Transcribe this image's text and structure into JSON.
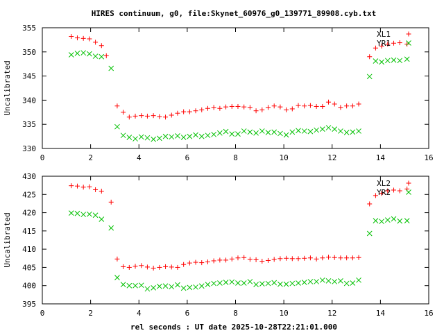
{
  "chart_data": {
    "type": "scatter",
    "title": "HIRES continuum, g0, file:Skynet_60976_g0_139771_89908.cyb.txt",
    "xlabel": "rel seconds : UT date 2025-10-28T22:21:01.000",
    "colors": {
      "XL": "#ff0000",
      "YR": "#00c000"
    },
    "panels": [
      {
        "ylabel": "Uncalibrated",
        "xlim": [
          0,
          16
        ],
        "ylim": [
          330,
          355
        ],
        "xticks": [
          "0",
          "2",
          "4",
          "6",
          "8",
          "10",
          "12",
          "14",
          "16"
        ],
        "yticks": [
          "330",
          "335",
          "340",
          "345",
          "350",
          "355"
        ],
        "series": [
          {
            "name": "XL1",
            "marker": "plus",
            "color": "#ff0000",
            "x": [
              1.2,
              1.45,
              1.7,
              1.95,
              2.2,
              2.45,
              2.65,
              3.1,
              3.35,
              3.6,
              3.85,
              4.1,
              4.35,
              4.6,
              4.85,
              5.1,
              5.35,
              5.6,
              5.85,
              6.1,
              6.35,
              6.6,
              6.85,
              7.1,
              7.35,
              7.6,
              7.85,
              8.1,
              8.35,
              8.6,
              8.85,
              9.1,
              9.35,
              9.6,
              9.85,
              10.1,
              10.35,
              10.6,
              10.85,
              11.1,
              11.35,
              11.6,
              11.85,
              12.1,
              12.35,
              12.6,
              12.85,
              13.1,
              13.55,
              13.8,
              14.05,
              14.3,
              14.55,
              14.8,
              15.1
            ],
            "y": [
              353.2,
              352.9,
              352.8,
              352.7,
              352.0,
              351.3,
              349.2,
              338.8,
              337.5,
              336.5,
              336.7,
              336.8,
              336.7,
              336.8,
              336.6,
              336.5,
              336.9,
              337.3,
              337.6,
              337.6,
              337.8,
              338.0,
              338.3,
              338.5,
              338.3,
              338.6,
              338.7,
              338.7,
              338.6,
              338.5,
              337.8,
              338.0,
              338.5,
              338.8,
              338.6,
              338.0,
              338.2,
              338.9,
              338.8,
              338.9,
              338.7,
              338.7,
              339.6,
              339.2,
              338.5,
              338.8,
              338.8,
              339.2,
              349.0,
              350.8,
              351.2,
              351.6,
              351.8,
              351.9,
              351.6
            ]
          },
          {
            "name": "YR1",
            "marker": "cross",
            "color": "#00c000",
            "x": [
              1.2,
              1.45,
              1.7,
              1.95,
              2.2,
              2.45,
              2.85,
              3.1,
              3.35,
              3.6,
              3.85,
              4.1,
              4.35,
              4.6,
              4.85,
              5.1,
              5.35,
              5.6,
              5.85,
              6.1,
              6.35,
              6.6,
              6.85,
              7.1,
              7.35,
              7.6,
              7.85,
              8.1,
              8.35,
              8.6,
              8.85,
              9.1,
              9.35,
              9.6,
              9.85,
              10.1,
              10.35,
              10.6,
              10.85,
              11.1,
              11.35,
              11.6,
              11.85,
              12.1,
              12.35,
              12.6,
              12.85,
              13.1,
              13.55,
              13.8,
              14.05,
              14.3,
              14.55,
              14.8,
              15.1
            ],
            "y": [
              349.4,
              349.7,
              349.8,
              349.6,
              349.1,
              349.0,
              346.6,
              334.5,
              332.7,
              332.3,
              332.0,
              332.4,
              332.2,
              331.9,
              332.1,
              332.5,
              332.4,
              332.6,
              332.3,
              332.5,
              332.8,
              332.5,
              332.7,
              332.9,
              333.2,
              333.5,
              333.0,
              333.0,
              333.6,
              333.4,
              333.2,
              333.6,
              333.3,
              333.4,
              333.1,
              332.8,
              333.4,
              333.7,
              333.6,
              333.5,
              333.8,
              334.0,
              334.3,
              334.0,
              333.6,
              333.3,
              333.4,
              333.6,
              344.9,
              348.1,
              347.9,
              348.2,
              348.3,
              348.2,
              348.5
            ]
          }
        ]
      },
      {
        "ylabel": "Uncalibrated",
        "xlim": [
          0,
          16
        ],
        "ylim": [
          395,
          430
        ],
        "xticks": [
          "0",
          "2",
          "4",
          "6",
          "8",
          "10",
          "12",
          "14",
          "16"
        ],
        "yticks": [
          "395",
          "400",
          "405",
          "410",
          "415",
          "420",
          "425",
          "430"
        ],
        "series": [
          {
            "name": "XL2",
            "marker": "plus",
            "color": "#ff0000",
            "x": [
              1.2,
              1.45,
              1.7,
              1.95,
              2.2,
              2.45,
              2.85,
              3.1,
              3.35,
              3.6,
              3.85,
              4.1,
              4.35,
              4.6,
              4.85,
              5.1,
              5.35,
              5.6,
              5.85,
              6.1,
              6.35,
              6.6,
              6.85,
              7.1,
              7.35,
              7.6,
              7.85,
              8.1,
              8.35,
              8.6,
              8.85,
              9.1,
              9.35,
              9.6,
              9.85,
              10.1,
              10.35,
              10.6,
              10.85,
              11.1,
              11.35,
              11.6,
              11.85,
              12.1,
              12.35,
              12.6,
              12.85,
              13.1,
              13.55,
              13.8,
              14.05,
              14.3,
              14.55,
              14.8,
              15.1
            ],
            "y": [
              427.4,
              427.3,
              427.0,
              427.1,
              426.3,
              425.9,
              422.9,
              407.3,
              405.2,
              405.0,
              405.3,
              405.5,
              405.1,
              404.8,
              405.0,
              405.2,
              405.1,
              405.0,
              405.8,
              406.2,
              406.4,
              406.3,
              406.5,
              406.8,
              407.0,
              407.0,
              407.3,
              407.6,
              407.7,
              407.2,
              407.1,
              406.7,
              406.9,
              407.2,
              407.4,
              407.5,
              407.4,
              407.4,
              407.5,
              407.6,
              407.3,
              407.6,
              407.8,
              407.7,
              407.6,
              407.6,
              407.6,
              407.7,
              422.4,
              424.7,
              425.3,
              426.0,
              426.2,
              426.0,
              426.5
            ]
          },
          {
            "name": "YR2",
            "marker": "cross",
            "color": "#00c000",
            "x": [
              1.2,
              1.45,
              1.7,
              1.95,
              2.2,
              2.45,
              2.85,
              3.1,
              3.35,
              3.6,
              3.85,
              4.1,
              4.35,
              4.6,
              4.85,
              5.1,
              5.35,
              5.6,
              5.85,
              6.1,
              6.35,
              6.6,
              6.85,
              7.1,
              7.35,
              7.6,
              7.85,
              8.1,
              8.35,
              8.6,
              8.85,
              9.1,
              9.35,
              9.6,
              9.85,
              10.1,
              10.35,
              10.6,
              10.85,
              11.1,
              11.35,
              11.6,
              11.85,
              12.1,
              12.35,
              12.6,
              12.85,
              13.1,
              13.55,
              13.8,
              14.05,
              14.3,
              14.55,
              14.8,
              15.1
            ],
            "y": [
              419.9,
              419.8,
              419.5,
              419.6,
              419.3,
              418.2,
              415.8,
              402.2,
              400.3,
              400.0,
              400.0,
              400.1,
              399.1,
              399.4,
              399.8,
              399.9,
              399.7,
              400.2,
              399.3,
              399.5,
              399.6,
              399.9,
              400.3,
              400.6,
              400.7,
              400.9,
              401.0,
              400.7,
              400.7,
              401.1,
              400.3,
              400.5,
              400.6,
              400.8,
              400.4,
              400.4,
              400.6,
              400.7,
              400.9,
              401.1,
              401.1,
              401.5,
              401.3,
              401.1,
              401.3,
              400.6,
              400.7,
              401.5,
              414.3,
              417.8,
              417.6,
              418.0,
              418.3,
              417.7,
              417.8
            ]
          }
        ]
      }
    ]
  }
}
